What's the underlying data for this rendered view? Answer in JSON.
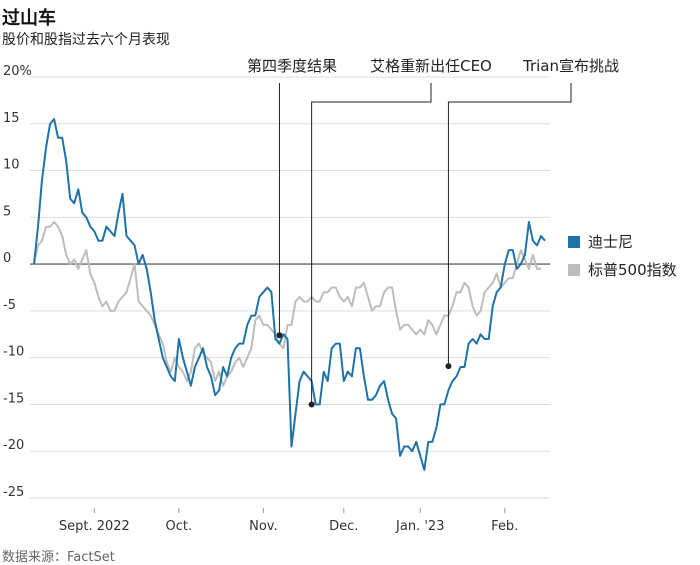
{
  "header": {
    "title": "过山车",
    "subtitle": "股价和股指过去六个月表现"
  },
  "source": "数据来源：FactSet",
  "colors": {
    "disney": "#1f73a8",
    "sp500": "#bdbdbd",
    "grid": "#dddddd",
    "zero": "#666666",
    "annotation": "#222222"
  },
  "chart_data": {
    "type": "line",
    "title": "过山车",
    "subtitle": "股价和股指过去六个月表现",
    "ylim": [
      -26,
      21
    ],
    "y_ticks": [
      20,
      15,
      10,
      5,
      0,
      -5,
      -10,
      -15,
      -20,
      -25
    ],
    "y_tick_labels": [
      "20%",
      "15",
      "10",
      "5",
      "0",
      "-5",
      "-10",
      "-15",
      "-20",
      "-25"
    ],
    "x_ticks": [
      {
        "label": "Sept. 2022",
        "index": 15
      },
      {
        "label": "Oct.",
        "index": 36
      },
      {
        "label": "Nov.",
        "index": 57
      },
      {
        "label": "Dec.",
        "index": 77
      },
      {
        "label": "Jan. '23",
        "index": 96
      },
      {
        "label": "Feb.",
        "index": 117
      }
    ],
    "grid": true,
    "legend_position": "right",
    "series": [
      {
        "name": "迪士尼",
        "color": "#1f73a8",
        "values": [
          0,
          4,
          9,
          12.5,
          15,
          15.5,
          13.5,
          13.5,
          11,
          7,
          6.5,
          8,
          5.5,
          5,
          4,
          3.5,
          2.5,
          2.5,
          4,
          3.5,
          3,
          5.5,
          7.5,
          3,
          2.5,
          2,
          0,
          1,
          -0.5,
          -3,
          -6,
          -8,
          -10,
          -11,
          -12,
          -12.5,
          -8,
          -10,
          -11.5,
          -13,
          -11,
          -10,
          -9,
          -11,
          -12,
          -14,
          -13.5,
          -11,
          -12,
          -10,
          -9,
          -8.5,
          -8.5,
          -6.5,
          -5.5,
          -5.5,
          -3.5,
          -3,
          -2.5,
          -3,
          -8,
          -8.5,
          -7.5,
          -8,
          -19.5,
          -16,
          -12.5,
          -11.5,
          -12,
          -12.5,
          -15,
          -15,
          -11.5,
          -12.5,
          -9,
          -8.5,
          -8.5,
          -12.5,
          -11.5,
          -12,
          -9,
          -9,
          -12,
          -14.5,
          -14.5,
          -14,
          -13,
          -12.5,
          -14.5,
          -16,
          -16.5,
          -20.5,
          -19.5,
          -19.5,
          -20,
          -19,
          -20.5,
          -22,
          -19,
          -19,
          -17.5,
          -15,
          -15,
          -13.5,
          -12.5,
          -12,
          -11,
          -11,
          -8.5,
          -8,
          -8.5,
          -7.5,
          -8,
          -8,
          -4.5,
          -3,
          -2.5,
          0,
          1.5,
          1.5,
          -0.5,
          0,
          1,
          4.5,
          2.5,
          2,
          3,
          2.5
        ],
        "annotation_points": [
          {
            "label": "第四季度结果",
            "index": 61,
            "y": -7.6
          },
          {
            "label": "艾格重新出任CEO",
            "index": 69,
            "y": -15.0
          },
          {
            "label": "Trian宣布挑战",
            "index": 103,
            "y": -10.9
          }
        ]
      },
      {
        "name": "标普500指数",
        "color": "#bdbdbd",
        "values": [
          0,
          2,
          2.5,
          4,
          4,
          4.5,
          4,
          3,
          1,
          0,
          0.5,
          -0.5,
          0.5,
          1.5,
          -1,
          -2,
          -3.5,
          -4.5,
          -4,
          -5,
          -5,
          -4,
          -3.5,
          -3,
          -1.5,
          0,
          -4,
          -4.5,
          -5,
          -5.5,
          -6.5,
          -7.5,
          -8.5,
          -10.5,
          -11.5,
          -10,
          -11,
          -11.5,
          -12.5,
          -11.5,
          -9,
          -8.5,
          -9.5,
          -10,
          -10.5,
          -12.5,
          -11.5,
          -13,
          -12,
          -11.5,
          -10.5,
          -10,
          -11,
          -10,
          -9,
          -6,
          -5.5,
          -6.5,
          -6.5,
          -7,
          -7.5,
          -8.5,
          -9,
          -6.5,
          -6.5,
          -4,
          -3.5,
          -4,
          -4,
          -3.5,
          -4,
          -4,
          -3,
          -3,
          -2.5,
          -2.5,
          -3.5,
          -4,
          -3.5,
          -4.5,
          -2.5,
          -2.5,
          -2,
          -3.5,
          -5,
          -4.5,
          -4.5,
          -3,
          -2.5,
          -2.5,
          -5,
          -7,
          -6.5,
          -6.5,
          -7,
          -7.5,
          -7,
          -7.5,
          -6,
          -6.5,
          -7.5,
          -6.5,
          -5.5,
          -5.5,
          -4.5,
          -3,
          -3,
          -2,
          -2.5,
          -4.5,
          -5.5,
          -5,
          -3,
          -2.5,
          -2,
          -1,
          -2.5,
          -2,
          -1.5,
          -1.5,
          0,
          1.5,
          0.5,
          -0.5,
          1,
          -0.5,
          -0.5
        ]
      }
    ],
    "legend": [
      "迪士尼",
      "标普500指数"
    ],
    "annotations": [
      {
        "label": "第四季度结果",
        "index": 61,
        "y": -7.6
      },
      {
        "label": "艾格重新出任CEO",
        "index": 69,
        "y": -15.0
      },
      {
        "label": "Trian宣布挑战",
        "index": 103,
        "y": -10.9
      }
    ]
  }
}
